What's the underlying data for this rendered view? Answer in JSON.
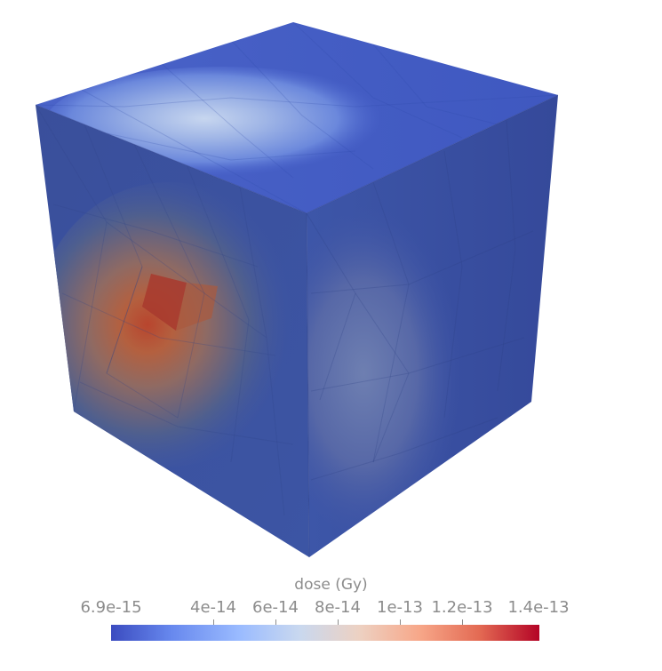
{
  "colorbar": {
    "title": "dose (Gy)",
    "ticks": [
      "6.9e-15",
      "4e-14",
      "6e-14",
      "8e-14",
      "1e-13",
      "1.2e-13",
      "1.4e-13"
    ],
    "min": 6.9e-15,
    "max": 1.4e-13,
    "colormap": "Cool to Warm",
    "colors": [
      "#3b4cc0",
      "#b40426"
    ]
  },
  "scene": {
    "object": "cube",
    "surface": "triangulated mesh"
  }
}
